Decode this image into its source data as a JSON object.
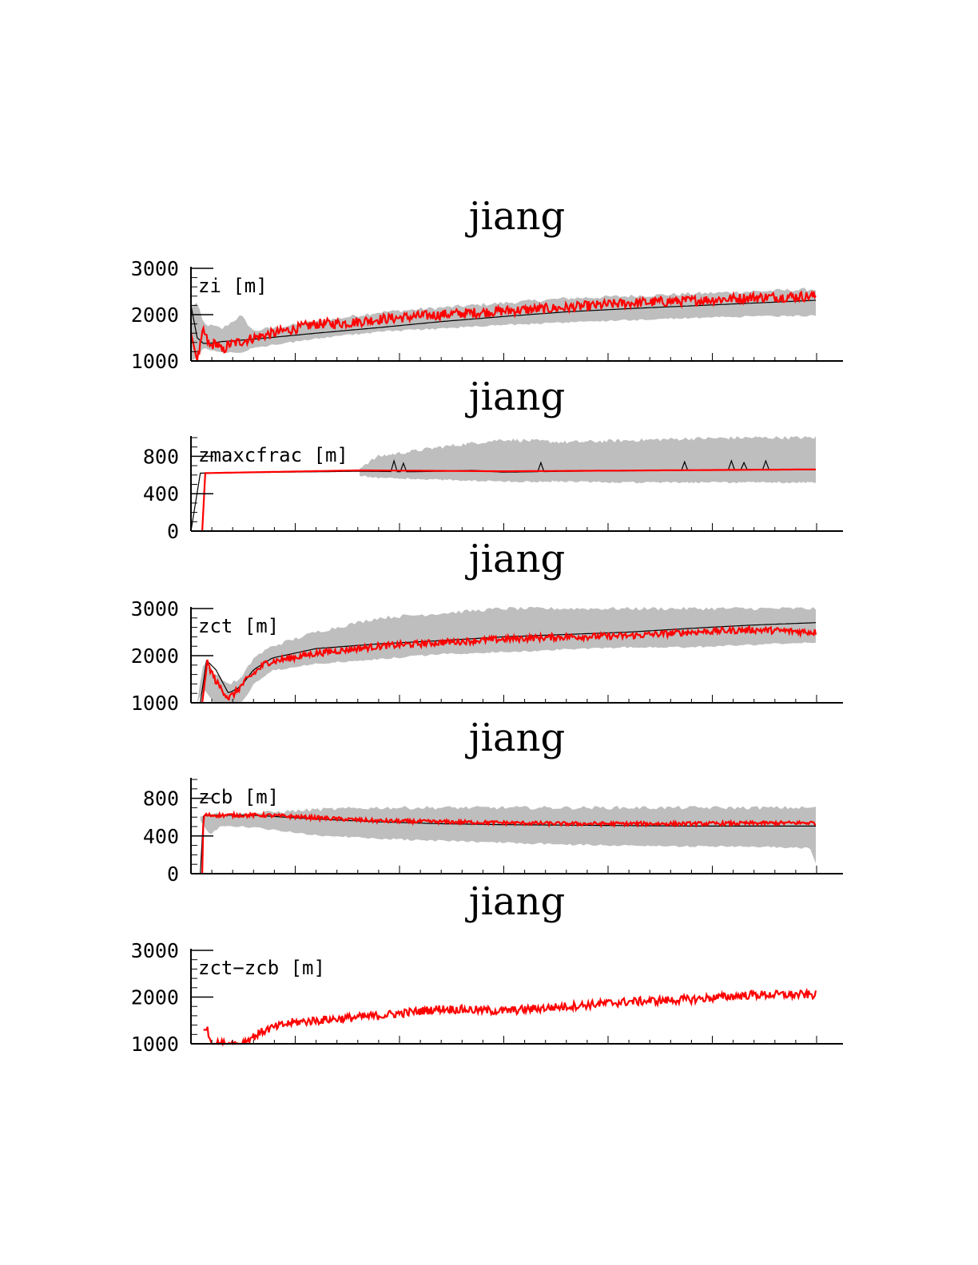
{
  "colors": {
    "band": "#bebebe",
    "ref_line": "#000000",
    "model_line": "#ff0000",
    "axis": "#000000"
  },
  "chart_data": [
    {
      "type": "line",
      "title": "jiang",
      "var_label": "zi [m]",
      "ylim": [
        1000,
        3000
      ],
      "yticks": [
        "1000",
        "2000",
        "3000"
      ],
      "x_range": [
        0,
        100
      ],
      "series": [
        {
          "role": "ens-band",
          "x": [
            0,
            1,
            2,
            5,
            8,
            10,
            15,
            20,
            25,
            30,
            40,
            50,
            60,
            70,
            80,
            90,
            100
          ],
          "upper": [
            2200,
            2250,
            1800,
            1700,
            1980,
            1650,
            1750,
            1850,
            1950,
            2050,
            2150,
            2250,
            2350,
            2400,
            2450,
            2500,
            2550
          ],
          "lower": [
            1000,
            1100,
            1300,
            1200,
            1200,
            1300,
            1400,
            1500,
            1580,
            1650,
            1720,
            1800,
            1850,
            1900,
            1950,
            1980,
            2000
          ]
        },
        {
          "role": "ref",
          "x": [
            0,
            1,
            2,
            3,
            5,
            10,
            20,
            30,
            40,
            50,
            60,
            70,
            80,
            90,
            100
          ],
          "y": [
            2200,
            1500,
            1380,
            1380,
            1420,
            1470,
            1600,
            1720,
            1850,
            1960,
            2060,
            2130,
            2190,
            2250,
            2310
          ]
        },
        {
          "role": "model",
          "x": [
            0,
            1,
            2,
            3,
            4,
            5,
            6,
            8,
            10,
            15,
            20,
            25,
            30,
            40,
            50,
            60,
            70,
            80,
            90,
            100
          ],
          "y": [
            1600,
            1000,
            1650,
            1300,
            1400,
            1200,
            1350,
            1420,
            1500,
            1650,
            1800,
            1820,
            1900,
            2000,
            2080,
            2150,
            2250,
            2300,
            2370,
            2400
          ],
          "noise": 110
        }
      ]
    },
    {
      "type": "line",
      "title": "jiang",
      "var_label": "zmaxcfrac [m]",
      "ylim": [
        0,
        1000
      ],
      "yticks": [
        "0",
        "400",
        "800"
      ],
      "x_range": [
        0,
        100
      ],
      "series": [
        {
          "role": "ens-band",
          "x": [
            27,
            30,
            40,
            50,
            60,
            70,
            80,
            90,
            100
          ],
          "upper": [
            680,
            800,
            900,
            980,
            950,
            970,
            990,
            1000,
            1000
          ],
          "lower": [
            600,
            580,
            560,
            540,
            540,
            530,
            530,
            530,
            530
          ]
        },
        {
          "role": "ref",
          "x": [
            0,
            1.5,
            27,
            35,
            40,
            45,
            50,
            60,
            70,
            80,
            90,
            100
          ],
          "y": [
            0,
            620,
            640,
            635,
            640,
            650,
            630,
            640,
            645,
            650,
            660,
            655
          ],
          "steps": 14
        },
        {
          "role": "model",
          "x": [
            1.8,
            2.0,
            27,
            50,
            100
          ],
          "y": [
            0,
            620,
            650,
            640,
            660
          ]
        }
      ]
    },
    {
      "type": "line",
      "title": "jiang",
      "var_label": "zct [m]",
      "ylim": [
        1000,
        3000
      ],
      "yticks": [
        "1000",
        "2000",
        "3000"
      ],
      "x_range": [
        0,
        100
      ],
      "series": [
        {
          "role": "ens-band",
          "x": [
            1,
            2,
            4,
            6,
            8,
            10,
            13,
            20,
            30,
            40,
            50,
            60,
            70,
            80,
            90,
            100
          ],
          "upper": [
            1000,
            1900,
            1600,
            1400,
            1500,
            1950,
            2200,
            2500,
            2800,
            2900,
            3000,
            3000,
            3000,
            3000,
            3000,
            3000
          ],
          "lower": [
            1000,
            1300,
            1000,
            1000,
            1000,
            1400,
            1700,
            1850,
            1950,
            2050,
            2100,
            2150,
            2200,
            2200,
            2250,
            2300
          ]
        },
        {
          "role": "ref",
          "x": [
            1.5,
            2.5,
            4,
            6,
            8,
            10,
            13,
            20,
            30,
            40,
            50,
            60,
            70,
            80,
            90,
            100
          ],
          "y": [
            1000,
            1900,
            1700,
            1200,
            1350,
            1700,
            1950,
            2150,
            2250,
            2320,
            2400,
            2450,
            2500,
            2580,
            2650,
            2700
          ]
        },
        {
          "role": "model",
          "x": [
            1.8,
            2.6,
            4,
            6,
            7,
            9,
            12,
            20,
            30,
            40,
            50,
            60,
            70,
            80,
            90,
            100
          ],
          "y": [
            1000,
            1850,
            1450,
            1100,
            1200,
            1500,
            1850,
            2050,
            2200,
            2280,
            2350,
            2400,
            2420,
            2500,
            2550,
            2500
          ],
          "noise": 70
        }
      ]
    },
    {
      "type": "line",
      "title": "jiang",
      "var_label": "zcb [m]",
      "ylim": [
        0,
        1000
      ],
      "yticks": [
        "0",
        "400",
        "800"
      ],
      "x_range": [
        0,
        100
      ],
      "series": [
        {
          "role": "ens-band",
          "x": [
            1.5,
            3,
            5,
            10,
            20,
            30,
            40,
            50,
            60,
            70,
            80,
            90,
            99,
            100
          ],
          "upper": [
            620,
            640,
            630,
            640,
            680,
            700,
            700,
            700,
            700,
            700,
            700,
            700,
            700,
            700
          ],
          "lower": [
            580,
            420,
            520,
            500,
            420,
            380,
            360,
            340,
            320,
            310,
            300,
            300,
            280,
            120
          ]
        },
        {
          "role": "ref",
          "x": [
            1.5,
            2,
            10,
            20,
            30,
            40,
            50,
            60,
            70,
            80,
            90,
            100
          ],
          "y": [
            0,
            620,
            620,
            580,
            550,
            530,
            520,
            515,
            510,
            505,
            505,
            505
          ]
        },
        {
          "role": "model",
          "x": [
            1.8,
            2.0,
            12,
            30,
            45,
            60,
            80,
            100
          ],
          "y": [
            0,
            620,
            620,
            560,
            545,
            530,
            530,
            540
          ],
          "noise": 20
        }
      ]
    },
    {
      "type": "line",
      "title": "jiang",
      "var_label": "zct−zcb [m]",
      "ylim": [
        1000,
        3000
      ],
      "yticks": [
        "1000",
        "2000",
        "3000"
      ],
      "x_range": [
        0,
        100
      ],
      "series": [
        {
          "role": "model",
          "x": [
            2,
            2.6,
            3.3,
            4,
            8,
            9,
            12,
            16,
            20,
            30,
            40,
            50,
            60,
            70,
            80,
            90,
            100
          ],
          "y": [
            1300,
            1300,
            1000,
            1000,
            1000,
            1080,
            1300,
            1450,
            1500,
            1600,
            1750,
            1700,
            1800,
            1900,
            1950,
            2050,
            2050
          ],
          "noise": 90
        }
      ]
    }
  ]
}
